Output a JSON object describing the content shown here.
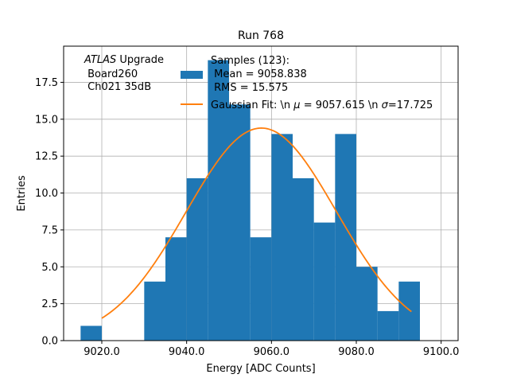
{
  "chart_data": {
    "type": "bar",
    "title": "Run 768",
    "xlabel": "Energy [ADC Counts]",
    "ylabel": "Entries",
    "xlim": [
      9011,
      9104
    ],
    "ylim": [
      0,
      19.95
    ],
    "grid": true,
    "bin_width": 5,
    "bins": [
      {
        "x0": 9015,
        "x1": 9020,
        "value": 1
      },
      {
        "x0": 9020,
        "x1": 9025,
        "value": 0
      },
      {
        "x0": 9025,
        "x1": 9030,
        "value": 0
      },
      {
        "x0": 9030,
        "x1": 9035,
        "value": 4
      },
      {
        "x0": 9035,
        "x1": 9040,
        "value": 7
      },
      {
        "x0": 9040,
        "x1": 9045,
        "value": 11
      },
      {
        "x0": 9045,
        "x1": 9050,
        "value": 19
      },
      {
        "x0": 9050,
        "x1": 9055,
        "value": 16
      },
      {
        "x0": 9055,
        "x1": 9060,
        "value": 7
      },
      {
        "x0": 9060,
        "x1": 9065,
        "value": 14
      },
      {
        "x0": 9065,
        "x1": 9070,
        "value": 11
      },
      {
        "x0": 9070,
        "x1": 9075,
        "value": 8
      },
      {
        "x0": 9075,
        "x1": 9080,
        "value": 14
      },
      {
        "x0": 9080,
        "x1": 9085,
        "value": 5
      },
      {
        "x0": 9085,
        "x1": 9090,
        "value": 2
      },
      {
        "x0": 9090,
        "x1": 9095,
        "value": 4
      }
    ],
    "fit": {
      "type": "gaussian",
      "mu": 9057.615,
      "sigma": 17.725,
      "amplitude": 14.4,
      "x_range": [
        9020,
        9093
      ]
    },
    "xticks": [
      {
        "value": 9020,
        "label": "9020.0"
      },
      {
        "value": 9040,
        "label": "9040.0"
      },
      {
        "value": 9060,
        "label": "9060.0"
      },
      {
        "value": 9080,
        "label": "9080.0"
      },
      {
        "value": 9100,
        "label": "9100.0"
      }
    ],
    "yticks": [
      {
        "value": 0,
        "label": "0.0"
      },
      {
        "value": 2.5,
        "label": "2.5"
      },
      {
        "value": 5,
        "label": "5.0"
      },
      {
        "value": 7.5,
        "label": "7.5"
      },
      {
        "value": 10,
        "label": "10.0"
      },
      {
        "value": 12.5,
        "label": "12.5"
      },
      {
        "value": 15,
        "label": "15.0"
      },
      {
        "value": 17.5,
        "label": "17.5"
      }
    ],
    "annotation": {
      "experiment": "ATLAS",
      "experiment_suffix": " Upgrade",
      "line2": " Board260",
      "line3": " Ch021 35dB"
    },
    "legend": {
      "placement": "top-right",
      "samples_line1": "Samples (123):",
      "samples_line2": " Mean = 9058.838",
      "samples_line3": " RMS = 15.575",
      "fit_prefix": "Gaussian Fit: \\n ",
      "fit_mu_symbol": "μ",
      "fit_mid": " = 9057.615 \\n ",
      "fit_sigma_symbol": "σ",
      "fit_suffix": "=17.725"
    },
    "colors": {
      "bars": "#1f77b4",
      "fit": "#ff7f0e",
      "grid": "#b0b0b0",
      "axes": "#000000"
    }
  }
}
